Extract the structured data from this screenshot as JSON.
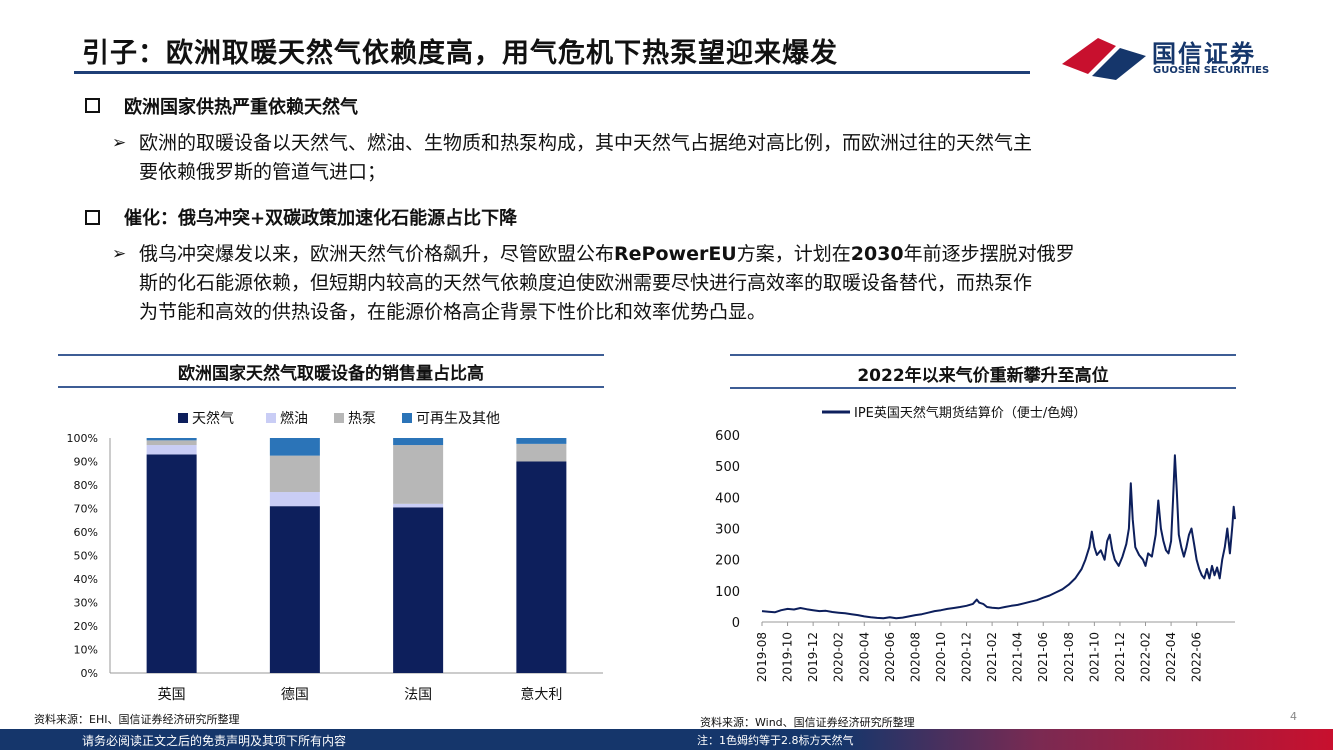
{
  "header": {
    "title": "引子：欧洲取暖天然气依赖度高，用气危机下热泵望迎来爆发",
    "logo_cn": "国信证券",
    "logo_en": "GUOSEN SECURITIES"
  },
  "section1": {
    "heading": "欧洲国家供热严重依赖天然气",
    "line1": "欧洲的取暖设备以天然气、燃油、生物质和热泵构成，其中天然气占据绝对高比例，而欧洲过往的天然气主",
    "line2": "要依赖俄罗斯的管道气进口；"
  },
  "section2": {
    "heading": "催化：俄乌冲突+双碳政策加速化石能源占比下降",
    "line1_a": "俄乌冲突爆发以来，欧洲天然气价格飙升，尽管欧盟公布",
    "line1_b": "RePowerEU",
    "line1_c": "方案，计划在",
    "line1_d": "2030",
    "line1_e": "年前逐步摆脱对俄罗",
    "line2": "斯的化石能源依赖，但短期内较高的天然气依赖度迫使欧洲需要尽快进行高效率的取暖设备替代，而热泵作",
    "line3": "为节能和高效的供热设备，在能源价格高企背景下性价比和效率优势凸显。"
  },
  "left_panel": {
    "title": "欧洲国家天然气取暖设备的销售量占比高",
    "source": "资料来源：EHI、国信证券经济研究所整理"
  },
  "right_panel": {
    "title": "2022年以来气价重新攀升至高位",
    "source": "资料来源：Wind、国信证券经济研究所整理",
    "note": "注：1色姆约等于2.8标方天然气"
  },
  "footer": {
    "disclaimer": "请务必阅读正文之后的免责声明及其项下所有内容",
    "page": "4"
  },
  "colors": {
    "navy": "#0d1f5c",
    "lavender": "#c9cdf5",
    "gray": "#b7b7b7",
    "blue": "#2b74b8",
    "brand": "#15366b",
    "red": "#c8102e"
  },
  "chart_data": [
    {
      "type": "bar",
      "stacked": true,
      "title": "欧洲国家天然气取暖设备的销售量占比高",
      "categories": [
        "英国",
        "德国",
        "法国",
        "意大利"
      ],
      "series": [
        {
          "name": "天然气",
          "values": [
            93,
            71,
            70.5,
            90
          ]
        },
        {
          "name": "燃油",
          "values": [
            4,
            6,
            1.5,
            0
          ]
        },
        {
          "name": "热泵",
          "values": [
            2,
            15.5,
            25,
            7.5
          ]
        },
        {
          "name": "可再生及其他",
          "values": [
            1,
            7.5,
            3,
            2.5
          ]
        }
      ],
      "y_ticks": [
        "0%",
        "10%",
        "20%",
        "30%",
        "40%",
        "50%",
        "60%",
        "70%",
        "80%",
        "90%",
        "100%"
      ],
      "ylim": [
        0,
        100
      ],
      "legend": "top"
    },
    {
      "type": "line",
      "title": "2022年以来气价重新攀升至高位",
      "series_name": "IPE英国天然气期货结算价（便士/色姆）",
      "x_ticks": [
        "2019-08",
        "2019-10",
        "2019-12",
        "2020-02",
        "2020-04",
        "2020-06",
        "2020-08",
        "2020-10",
        "2020-12",
        "2021-02",
        "2021-04",
        "2021-06",
        "2021-08",
        "2021-10",
        "2021-12",
        "2022-02",
        "2022-04",
        "2022-06"
      ],
      "y_ticks": [
        "0",
        "100",
        "200",
        "300",
        "400",
        "500",
        "600"
      ],
      "ylim": [
        0,
        600
      ],
      "x_month_range": [
        0,
        37
      ],
      "points": [
        [
          0,
          35
        ],
        [
          0.5,
          33
        ],
        [
          1,
          31
        ],
        [
          1.5,
          38
        ],
        [
          2,
          42
        ],
        [
          2.5,
          40
        ],
        [
          3,
          45
        ],
        [
          3.5,
          41
        ],
        [
          4,
          38
        ],
        [
          4.5,
          35
        ],
        [
          5,
          36
        ],
        [
          5.5,
          32
        ],
        [
          6,
          30
        ],
        [
          6.5,
          28
        ],
        [
          7,
          25
        ],
        [
          7.5,
          22
        ],
        [
          8,
          18
        ],
        [
          8.5,
          15
        ],
        [
          9,
          13
        ],
        [
          9.5,
          12
        ],
        [
          10,
          15
        ],
        [
          10.5,
          12
        ],
        [
          11,
          14
        ],
        [
          11.5,
          18
        ],
        [
          12,
          22
        ],
        [
          12.5,
          25
        ],
        [
          13,
          30
        ],
        [
          13.5,
          35
        ],
        [
          14,
          38
        ],
        [
          14.5,
          42
        ],
        [
          15,
          45
        ],
        [
          15.5,
          48
        ],
        [
          16,
          52
        ],
        [
          16.5,
          58
        ],
        [
          16.8,
          72
        ],
        [
          17,
          62
        ],
        [
          17.3,
          58
        ],
        [
          17.6,
          48
        ],
        [
          18,
          46
        ],
        [
          18.5,
          44
        ],
        [
          19,
          48
        ],
        [
          19.5,
          52
        ],
        [
          20,
          55
        ],
        [
          20.5,
          60
        ],
        [
          21,
          65
        ],
        [
          21.5,
          70
        ],
        [
          22,
          78
        ],
        [
          22.5,
          85
        ],
        [
          23,
          95
        ],
        [
          23.5,
          105
        ],
        [
          24,
          120
        ],
        [
          24.5,
          140
        ],
        [
          25,
          170
        ],
        [
          25.3,
          200
        ],
        [
          25.6,
          240
        ],
        [
          25.8,
          290
        ],
        [
          26,
          240
        ],
        [
          26.2,
          215
        ],
        [
          26.5,
          230
        ],
        [
          26.8,
          200
        ],
        [
          27,
          260
        ],
        [
          27.2,
          280
        ],
        [
          27.4,
          230
        ],
        [
          27.6,
          200
        ],
        [
          27.9,
          180
        ],
        [
          28.2,
          210
        ],
        [
          28.5,
          250
        ],
        [
          28.7,
          300
        ],
        [
          28.85,
          445
        ],
        [
          29,
          330
        ],
        [
          29.2,
          240
        ],
        [
          29.5,
          215
        ],
        [
          29.8,
          200
        ],
        [
          30,
          180
        ],
        [
          30.2,
          220
        ],
        [
          30.5,
          210
        ],
        [
          30.8,
          280
        ],
        [
          31,
          390
        ],
        [
          31.2,
          300
        ],
        [
          31.4,
          260
        ],
        [
          31.6,
          230
        ],
        [
          31.8,
          220
        ],
        [
          32.0,
          260
        ],
        [
          32.15,
          390
        ],
        [
          32.3,
          535
        ],
        [
          32.45,
          420
        ],
        [
          32.6,
          280
        ],
        [
          32.8,
          240
        ],
        [
          33,
          210
        ],
        [
          33.2,
          240
        ],
        [
          33.4,
          280
        ],
        [
          33.6,
          300
        ],
        [
          33.8,
          250
        ],
        [
          34,
          200
        ],
        [
          34.2,
          170
        ],
        [
          34.4,
          150
        ],
        [
          34.6,
          140
        ],
        [
          34.8,
          170
        ],
        [
          35,
          140
        ],
        [
          35.2,
          180
        ],
        [
          35.4,
          150
        ],
        [
          35.6,
          175
        ],
        [
          35.8,
          140
        ],
        [
          36,
          200
        ],
        [
          36.2,
          240
        ],
        [
          36.4,
          300
        ],
        [
          36.6,
          220
        ],
        [
          36.8,
          310
        ],
        [
          36.9,
          370
        ],
        [
          37,
          330
        ]
      ]
    }
  ]
}
